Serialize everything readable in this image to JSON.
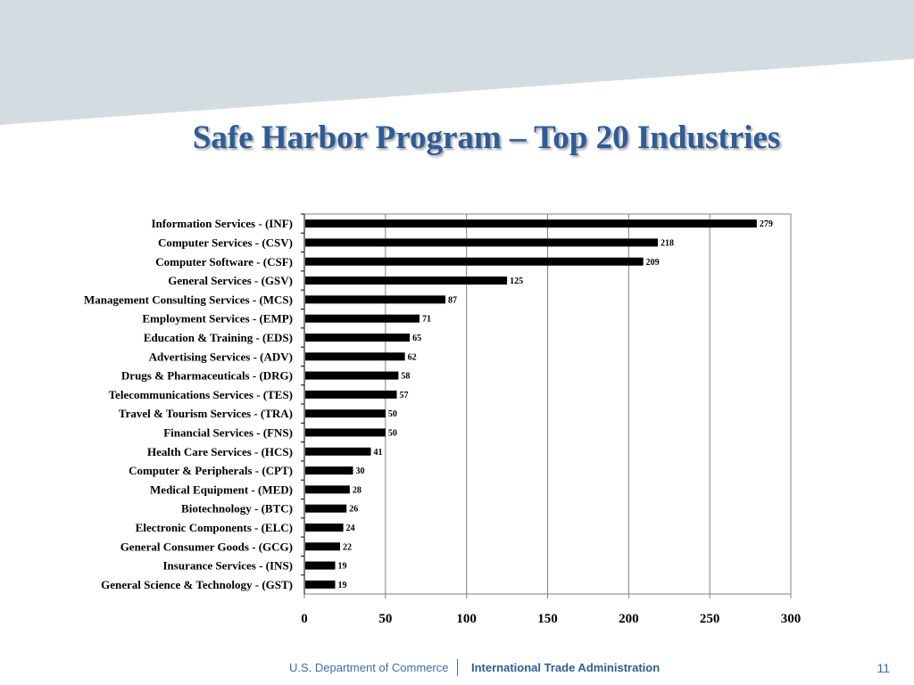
{
  "slide": {
    "title": "Safe Harbor Program – Top 20 Industries",
    "page_number": "11"
  },
  "footer": {
    "department": "U.S. Department of Commerce",
    "agency": "International Trade Administration"
  },
  "colors": {
    "title": "#2e5c99",
    "header_band": "#d3dde1",
    "bars": "#000000",
    "footer_text": "#3f6da8"
  },
  "chart_data": {
    "type": "bar",
    "orientation": "horizontal",
    "title": "",
    "xlabel": "",
    "ylabel": "",
    "xlim": [
      0,
      300
    ],
    "x_ticks": [
      0,
      50,
      100,
      150,
      200,
      250,
      300
    ],
    "grid": "vertical gridlines",
    "legend": "none",
    "categories": [
      "Information Services - (INF)",
      "Computer Services - (CSV)",
      "Computer Software - (CSF)",
      "General Services - (GSV)",
      "Management Consulting Services - (MCS)",
      "Employment Services - (EMP)",
      "Education & Training - (EDS)",
      "Advertising Services - (ADV)",
      "Drugs & Pharmaceuticals - (DRG)",
      "Telecommunications Services - (TES)",
      "Travel & Tourism Services - (TRA)",
      "Financial Services - (FNS)",
      "Health Care Services - (HCS)",
      "Computer & Peripherals - (CPT)",
      "Medical Equipment - (MED)",
      "Biotechnology - (BTC)",
      "Electronic Components - (ELC)",
      "General Consumer Goods - (GCG)",
      "Insurance Services - (INS)",
      "General Science & Technology - (GST)"
    ],
    "values": [
      279,
      218,
      209,
      125,
      87,
      71,
      65,
      62,
      58,
      57,
      50,
      50,
      41,
      30,
      28,
      26,
      24,
      22,
      19,
      19
    ]
  }
}
